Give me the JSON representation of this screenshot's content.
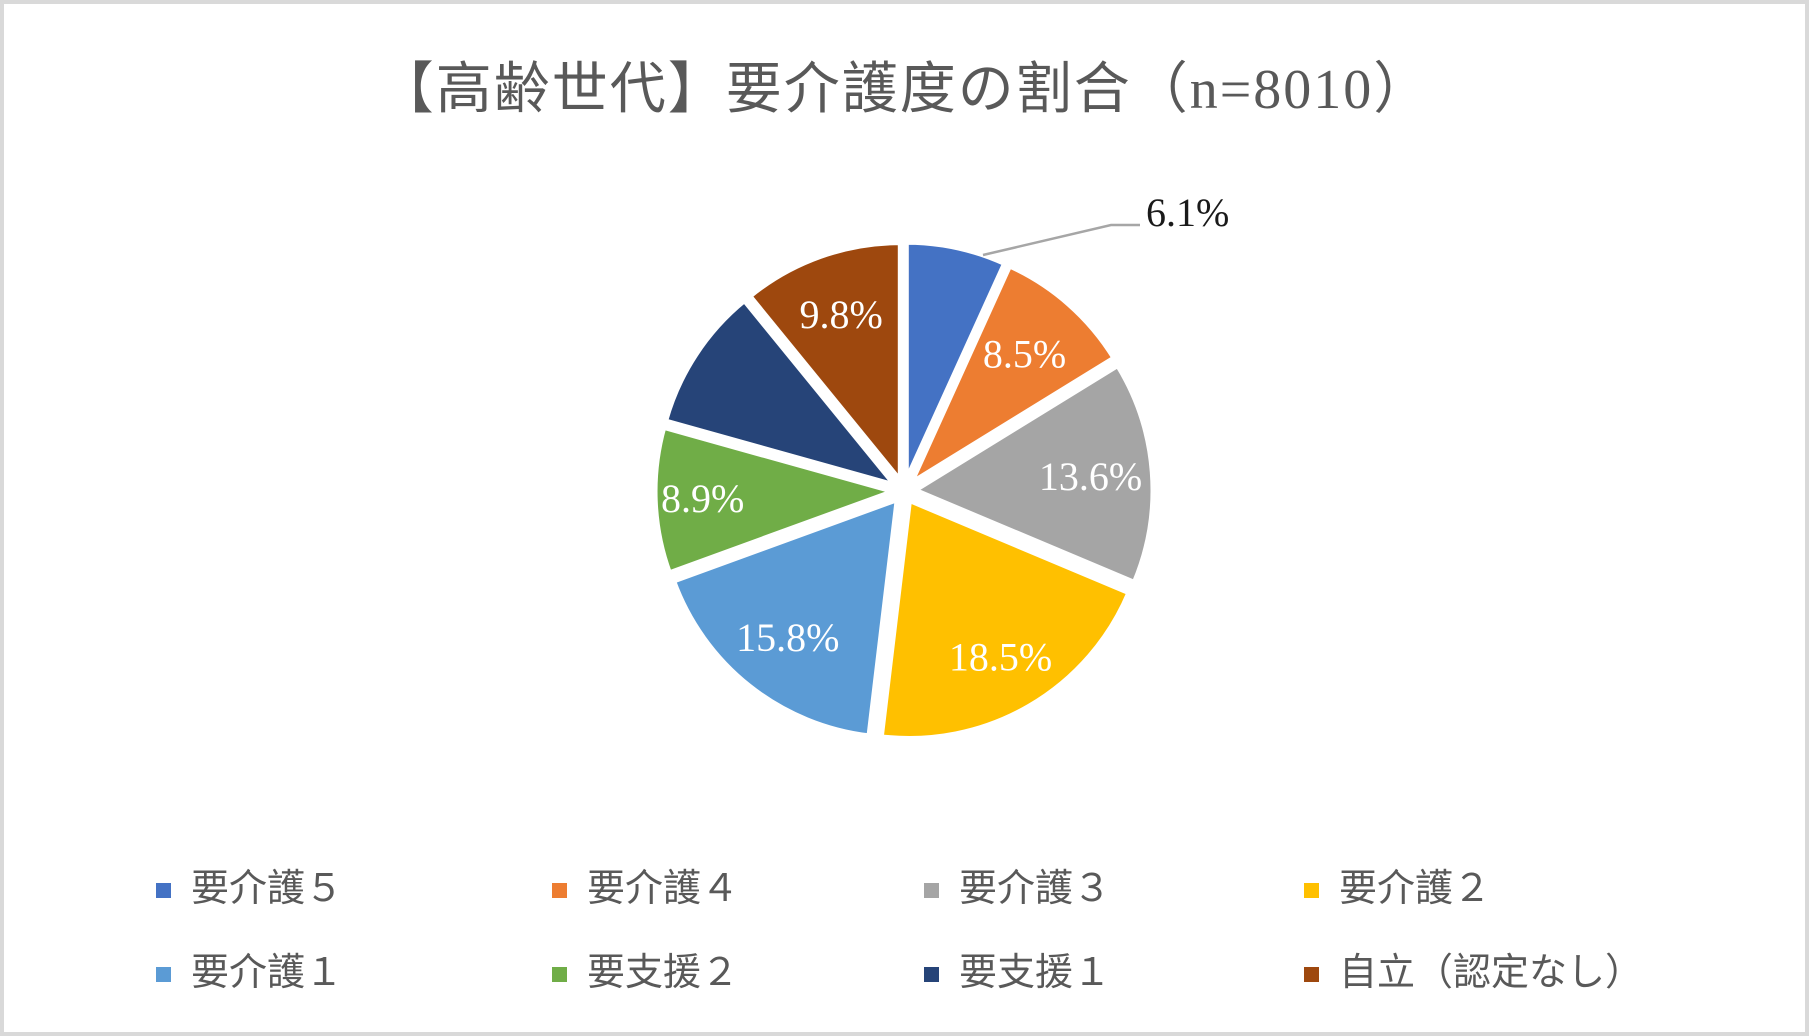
{
  "frame": {
    "background": "#FFFFFF",
    "border_color": "#D9D9D9"
  },
  "title": {
    "text": "【高齢世代】要介護度の割合（n=8010）",
    "color": "#595959"
  },
  "chart_data": {
    "type": "pie",
    "title": "【高齢世代】要介護度の割合（n=8010）",
    "sample_size_label": "n=8010",
    "start_angle_deg": 0,
    "direction": "clockwise",
    "exploded": true,
    "legend_position": "bottom",
    "legend_rows": 2,
    "legend_columns": 4,
    "label_color_inside": "#FFFFFF",
    "label_color_outside": "#1A1A1A",
    "leader_line_color": "#A6A6A6",
    "series": [
      {
        "name": "要介護５",
        "value_pct": 6.1,
        "label": "6.1%",
        "color": "#4472C4",
        "label_placement": "outside-callout"
      },
      {
        "name": "要介護４",
        "value_pct": 8.5,
        "label": "8.5%",
        "color": "#ED7D31",
        "label_placement": "inside"
      },
      {
        "name": "要介護３",
        "value_pct": 13.6,
        "label": "13.6%",
        "color": "#A5A5A5",
        "label_placement": "inside"
      },
      {
        "name": "要介護２",
        "value_pct": 18.5,
        "label": "18.5%",
        "color": "#FFC000",
        "label_placement": "inside"
      },
      {
        "name": "要介護１",
        "value_pct": 15.8,
        "label": "15.8%",
        "color": "#5B9BD5",
        "label_placement": "inside"
      },
      {
        "name": "要支援２",
        "value_pct": 8.9,
        "label": "8.9%",
        "color": "#70AD47",
        "label_placement": "inside"
      },
      {
        "name": "要支援１",
        "value_pct": 8.8,
        "label": null,
        "color": "#264478",
        "label_placement": "none"
      },
      {
        "name": "自立（認定なし）",
        "value_pct": 9.8,
        "label": "9.8%",
        "color": "#9E480E",
        "label_placement": "inside"
      }
    ]
  }
}
